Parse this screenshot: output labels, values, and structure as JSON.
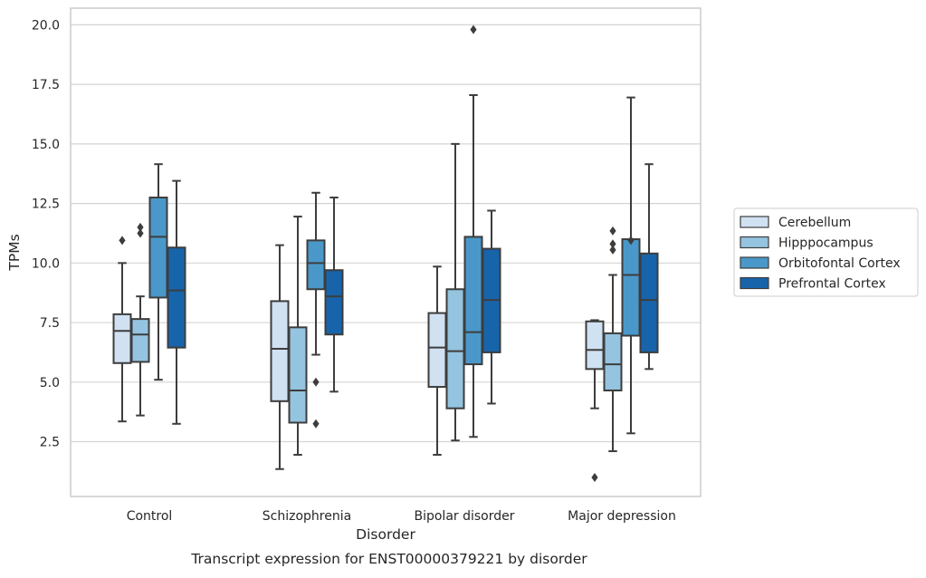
{
  "chart_data": {
    "type": "boxplot",
    "title": "",
    "caption": "Transcript expression for ENST00000379221 by disorder",
    "xlabel": "Disorder",
    "ylabel": "TPMs",
    "ylim": [
      0.2,
      20.7
    ],
    "yticks": [
      "2.5",
      "5.0",
      "7.5",
      "10.0",
      "12.5",
      "15.0",
      "17.5",
      "20.0"
    ],
    "grid": true,
    "legend_position": "right",
    "categories": [
      "Control",
      "Schizophrenia",
      "Bipolar disorder",
      "Major depression"
    ],
    "series": [
      {
        "name": "Cerebellum",
        "color": "#d0e1f2",
        "boxes": [
          {
            "whislo": 3.35,
            "q1": 5.8,
            "med": 7.15,
            "q3": 7.85,
            "whishi": 10.0,
            "fliers": [
              10.95
            ]
          },
          {
            "whislo": 1.35,
            "q1": 4.2,
            "med": 6.4,
            "q3": 8.4,
            "whishi": 10.75,
            "fliers": []
          },
          {
            "whislo": 1.95,
            "q1": 4.8,
            "med": 6.45,
            "q3": 7.9,
            "whishi": 9.85,
            "fliers": []
          },
          {
            "whislo": 3.9,
            "q1": 5.55,
            "med": 6.35,
            "q3": 7.55,
            "whishi": 7.6,
            "fliers": [
              1.0
            ]
          }
        ]
      },
      {
        "name": "Hipppocampus",
        "color": "#94c4df",
        "boxes": [
          {
            "whislo": 3.6,
            "q1": 5.85,
            "med": 7.0,
            "q3": 7.65,
            "whishi": 8.6,
            "fliers": [
              11.25,
              11.5
            ]
          },
          {
            "whislo": 1.95,
            "q1": 3.3,
            "med": 4.65,
            "q3": 7.3,
            "whishi": 11.95,
            "fliers": []
          },
          {
            "whislo": 2.55,
            "q1": 3.9,
            "med": 6.3,
            "q3": 8.9,
            "whishi": 15.0,
            "fliers": []
          },
          {
            "whislo": 2.1,
            "q1": 4.65,
            "med": 5.75,
            "q3": 7.05,
            "whishi": 9.5,
            "fliers": [
              10.55,
              10.8,
              11.35
            ]
          }
        ]
      },
      {
        "name": "Orbitofontal Cortex",
        "color": "#4a98c9",
        "boxes": [
          {
            "whislo": 5.1,
            "q1": 8.55,
            "med": 11.1,
            "q3": 12.75,
            "whishi": 14.15,
            "fliers": []
          },
          {
            "whislo": 6.15,
            "q1": 8.9,
            "med": 10.0,
            "q3": 10.95,
            "whishi": 12.95,
            "fliers": [
              3.25,
              5.0
            ]
          },
          {
            "whislo": 2.7,
            "q1": 5.75,
            "med": 7.1,
            "q3": 11.1,
            "whishi": 17.05,
            "fliers": [
              19.8
            ]
          },
          {
            "whislo": 2.85,
            "q1": 6.95,
            "med": 9.5,
            "q3": 11.0,
            "whishi": 16.95,
            "fliers": [
              10.95
            ]
          }
        ]
      },
      {
        "name": "Prefrontal Cortex",
        "color": "#1764ab",
        "boxes": [
          {
            "whislo": 3.25,
            "q1": 6.45,
            "med": 8.85,
            "q3": 10.65,
            "whishi": 13.45,
            "fliers": []
          },
          {
            "whislo": 4.6,
            "q1": 7.0,
            "med": 8.6,
            "q3": 9.7,
            "whishi": 12.75,
            "fliers": []
          },
          {
            "whislo": 4.1,
            "q1": 6.25,
            "med": 8.45,
            "q3": 10.6,
            "whishi": 12.2,
            "fliers": []
          },
          {
            "whislo": 5.55,
            "q1": 6.25,
            "med": 8.45,
            "q3": 10.4,
            "whishi": 14.15,
            "fliers": []
          }
        ]
      }
    ]
  }
}
